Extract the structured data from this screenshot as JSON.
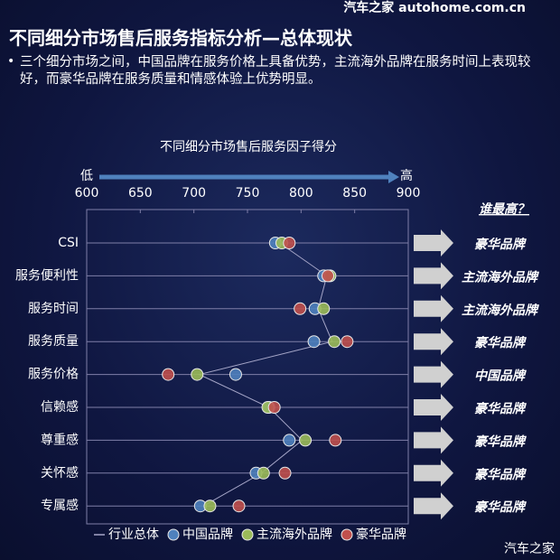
{
  "header": {
    "title": "不同细分市场售后服务指标分析—总体现状",
    "bullet": "三个细分市场之间，中国品牌在服务价格上具备优势，主流海外品牌在服务时间上表现较好，而豪华品牌在服务质量和情感体验上优势明显。"
  },
  "watermark": {
    "top": "汽车之家 autohome.com.cn",
    "bottom": "汽车之家"
  },
  "chart_data": {
    "type": "dot",
    "title": "不同细分市场售后服务因子得分",
    "axis_low": "低",
    "axis_high": "高",
    "categories": [
      "CSI",
      "服务便利性",
      "服务时间",
      "服务质量",
      "服务价格",
      "信赖感",
      "尊重感",
      "关怀感",
      "专属感"
    ],
    "xlim": [
      600,
      900
    ],
    "xticks": [
      600,
      650,
      700,
      750,
      800,
      850,
      900
    ],
    "series": [
      {
        "name": "行业总体",
        "color": "#a6a6c8",
        "marker": "line",
        "values": [
          780,
          824,
          816,
          829,
          705,
          770,
          801,
          763,
          709
        ]
      },
      {
        "name": "中国品牌",
        "color": "#4f81bd",
        "marker": "circle",
        "values": [
          776,
          821,
          813,
          812,
          739,
          770,
          789,
          758,
          706
        ]
      },
      {
        "name": "主流海外品牌",
        "color": "#9bbb59",
        "marker": "circle",
        "values": [
          782,
          827,
          821,
          831,
          703,
          769,
          804,
          765,
          715
        ]
      },
      {
        "name": "豪华品牌",
        "color": "#c0504d",
        "marker": "circle",
        "values": [
          789,
          825,
          799,
          843,
          676,
          775,
          832,
          785,
          742
        ]
      }
    ],
    "annotation": "谁最高？",
    "winners": [
      "豪华品牌",
      "主流海外品牌",
      "主流海外品牌",
      "豪华品牌",
      "中国品牌",
      "豪华品牌",
      "豪华品牌",
      "豪华品牌",
      "豪华品牌"
    ]
  }
}
